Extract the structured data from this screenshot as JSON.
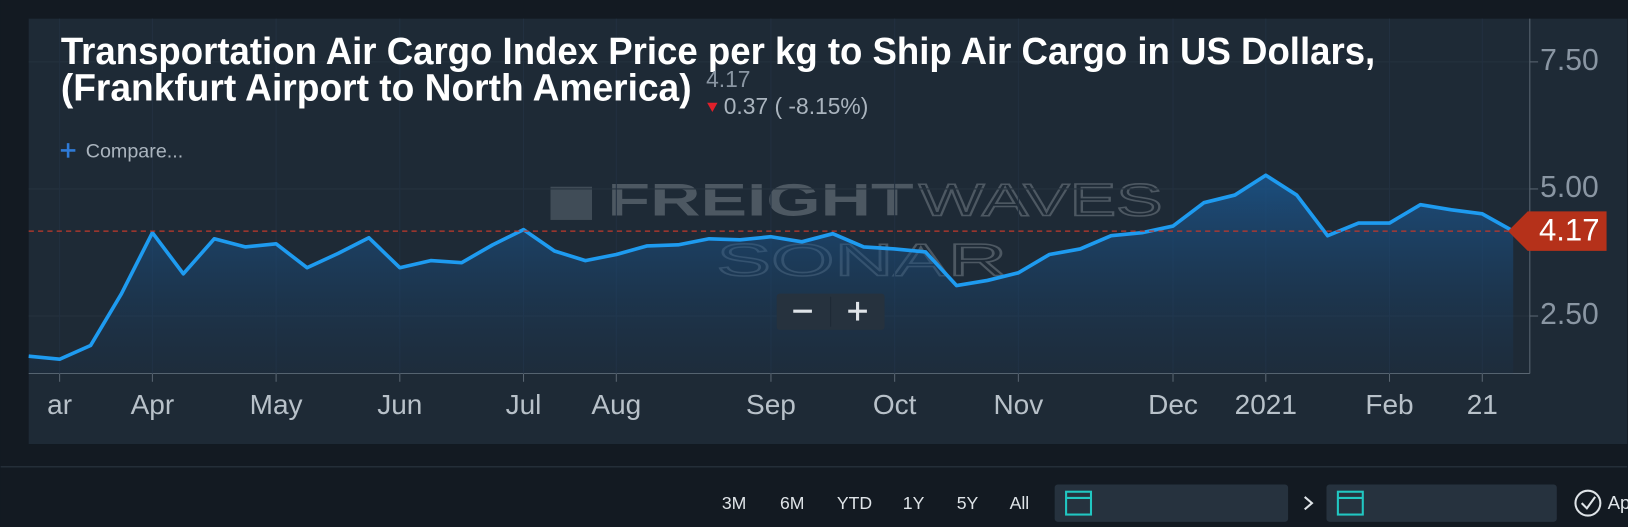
{
  "chart_data": {
    "type": "line",
    "title_lines": [
      "Transportation Air Cargo Index Price per kg to Ship Air Cargo in US Dollars,",
      "(Frankfurt Airport to North America)"
    ],
    "change": "0.37 ( -8.15%)",
    "categories": [
      null,
      "ar",
      null,
      null,
      "Apr",
      null,
      null,
      null,
      "May",
      null,
      null,
      null,
      "Jun",
      null,
      null,
      null,
      "Jul",
      null,
      null,
      "Aug",
      null,
      null,
      null,
      null,
      "Sep",
      null,
      null,
      null,
      "Oct",
      null,
      null,
      null,
      "Nov",
      null,
      null,
      null,
      null,
      "Dec",
      null,
      null,
      "2021",
      null,
      null,
      null,
      "Feb",
      null,
      null,
      "21",
      null
    ],
    "values": [
      1.71,
      1.65,
      1.92,
      2.94,
      4.14,
      3.33,
      4.02,
      3.86,
      3.92,
      3.45,
      3.73,
      4.04,
      3.45,
      3.59,
      3.55,
      3.9,
      4.2,
      3.78,
      3.59,
      3.71,
      3.88,
      3.9,
      4.02,
      4.0,
      4.06,
      3.96,
      4.12,
      3.86,
      3.82,
      3.76,
      3.1,
      3.2,
      3.35,
      3.71,
      3.82,
      4.08,
      4.14,
      4.27,
      4.73,
      4.88,
      5.27,
      4.88,
      4.08,
      4.33,
      4.33,
      4.69,
      4.59,
      4.51,
      4.17
    ],
    "color": "#1e9bf0",
    "area": true,
    "last_value_line": true,
    "ylim": [
      1.37,
      8.35
    ],
    "yticks": [
      {
        "value": 2.5,
        "label": "2.50"
      },
      {
        "value": 5,
        "label": "5.00"
      },
      {
        "value": 7.5,
        "label": "7.50"
      }
    ],
    "grid": true
  },
  "watermark": {
    "bold": "FREIGHT",
    "light": "WAVES",
    "product": "SONAR"
  },
  "compare": "Compare...",
  "toolbar": {
    "ranges": [
      "3M",
      "6M",
      "YTD",
      "1Y",
      "5Y",
      "All"
    ],
    "apply": "Ap"
  }
}
